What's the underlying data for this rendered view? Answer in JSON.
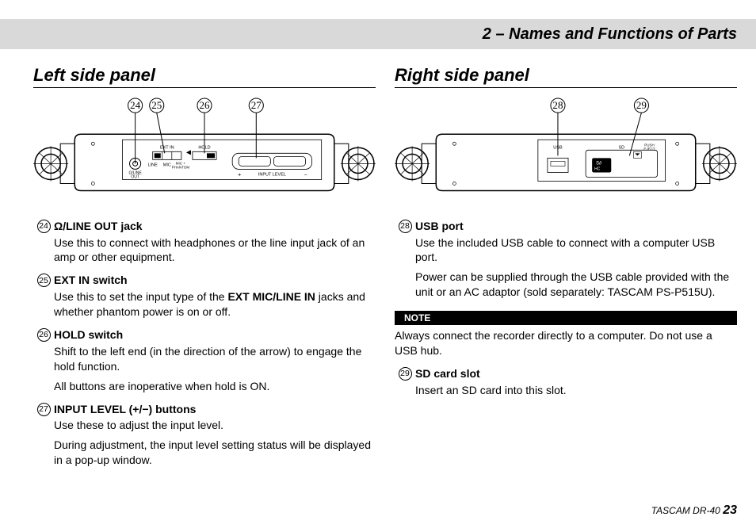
{
  "header": {
    "title": "2 – Names and Functions of Parts"
  },
  "left": {
    "section_title": "Left side panel",
    "diagram": {
      "callouts": [
        "24",
        "25",
        "26",
        "27"
      ],
      "labels": {
        "ext_in": "EXT IN",
        "hold": "HOLD",
        "line": "LINE",
        "mic": "MIC",
        "mic_phantom": "MIC +\nPHANTOM",
        "line_out": "/LINE\nOUT",
        "input_level": "INPUT LEVEL",
        "plus": "+",
        "minus": "−"
      }
    },
    "items": [
      {
        "num": "24",
        "title_prefix_icon": "headphone",
        "title": "/LINE OUT jack",
        "paras": [
          "Use this to connect with headphones or the line input jack of an amp or other equipment."
        ]
      },
      {
        "num": "25",
        "title": "EXT IN switch",
        "paras": [
          "Use this to set the input type of the <b>EXT MIC/LINE IN</b> jacks and whether phantom power is on or off."
        ]
      },
      {
        "num": "26",
        "title": "HOLD switch",
        "paras": [
          "Shift to the left end (in the direction of the arrow) to engage the hold function.",
          "All buttons are inoperative when hold is ON."
        ]
      },
      {
        "num": "27",
        "title": "INPUT LEVEL (+/−) buttons",
        "paras": [
          "Use these to adjust the input level.",
          "During adjustment, the input level setting status will be displayed in a pop-up window."
        ]
      }
    ]
  },
  "right": {
    "section_title": "Right side panel",
    "diagram": {
      "callouts": [
        "28",
        "29"
      ],
      "labels": {
        "usb": "USB",
        "sd": "SD",
        "push_eject": "PUSH\nEJECT"
      }
    },
    "items": [
      {
        "num": "28",
        "title": "USB port",
        "paras": [
          "Use the included USB cable to connect with a computer USB port.",
          "Power can be supplied through the USB cable provided with the unit or an AC adaptor (sold separately: TASCAM PS-P515U)."
        ]
      }
    ],
    "note": {
      "label": "NOTE",
      "text": "Always connect the recorder directly to a computer. Do not use a USB hub."
    },
    "items2": [
      {
        "num": "29",
        "title": "SD card slot",
        "paras": [
          "Insert an SD card into this slot."
        ]
      }
    ]
  },
  "footer": {
    "model": "TASCAM DR-40",
    "page": "23"
  },
  "colors": {
    "band": "#d9d9d9",
    "text": "#000000",
    "bg": "#ffffff"
  }
}
